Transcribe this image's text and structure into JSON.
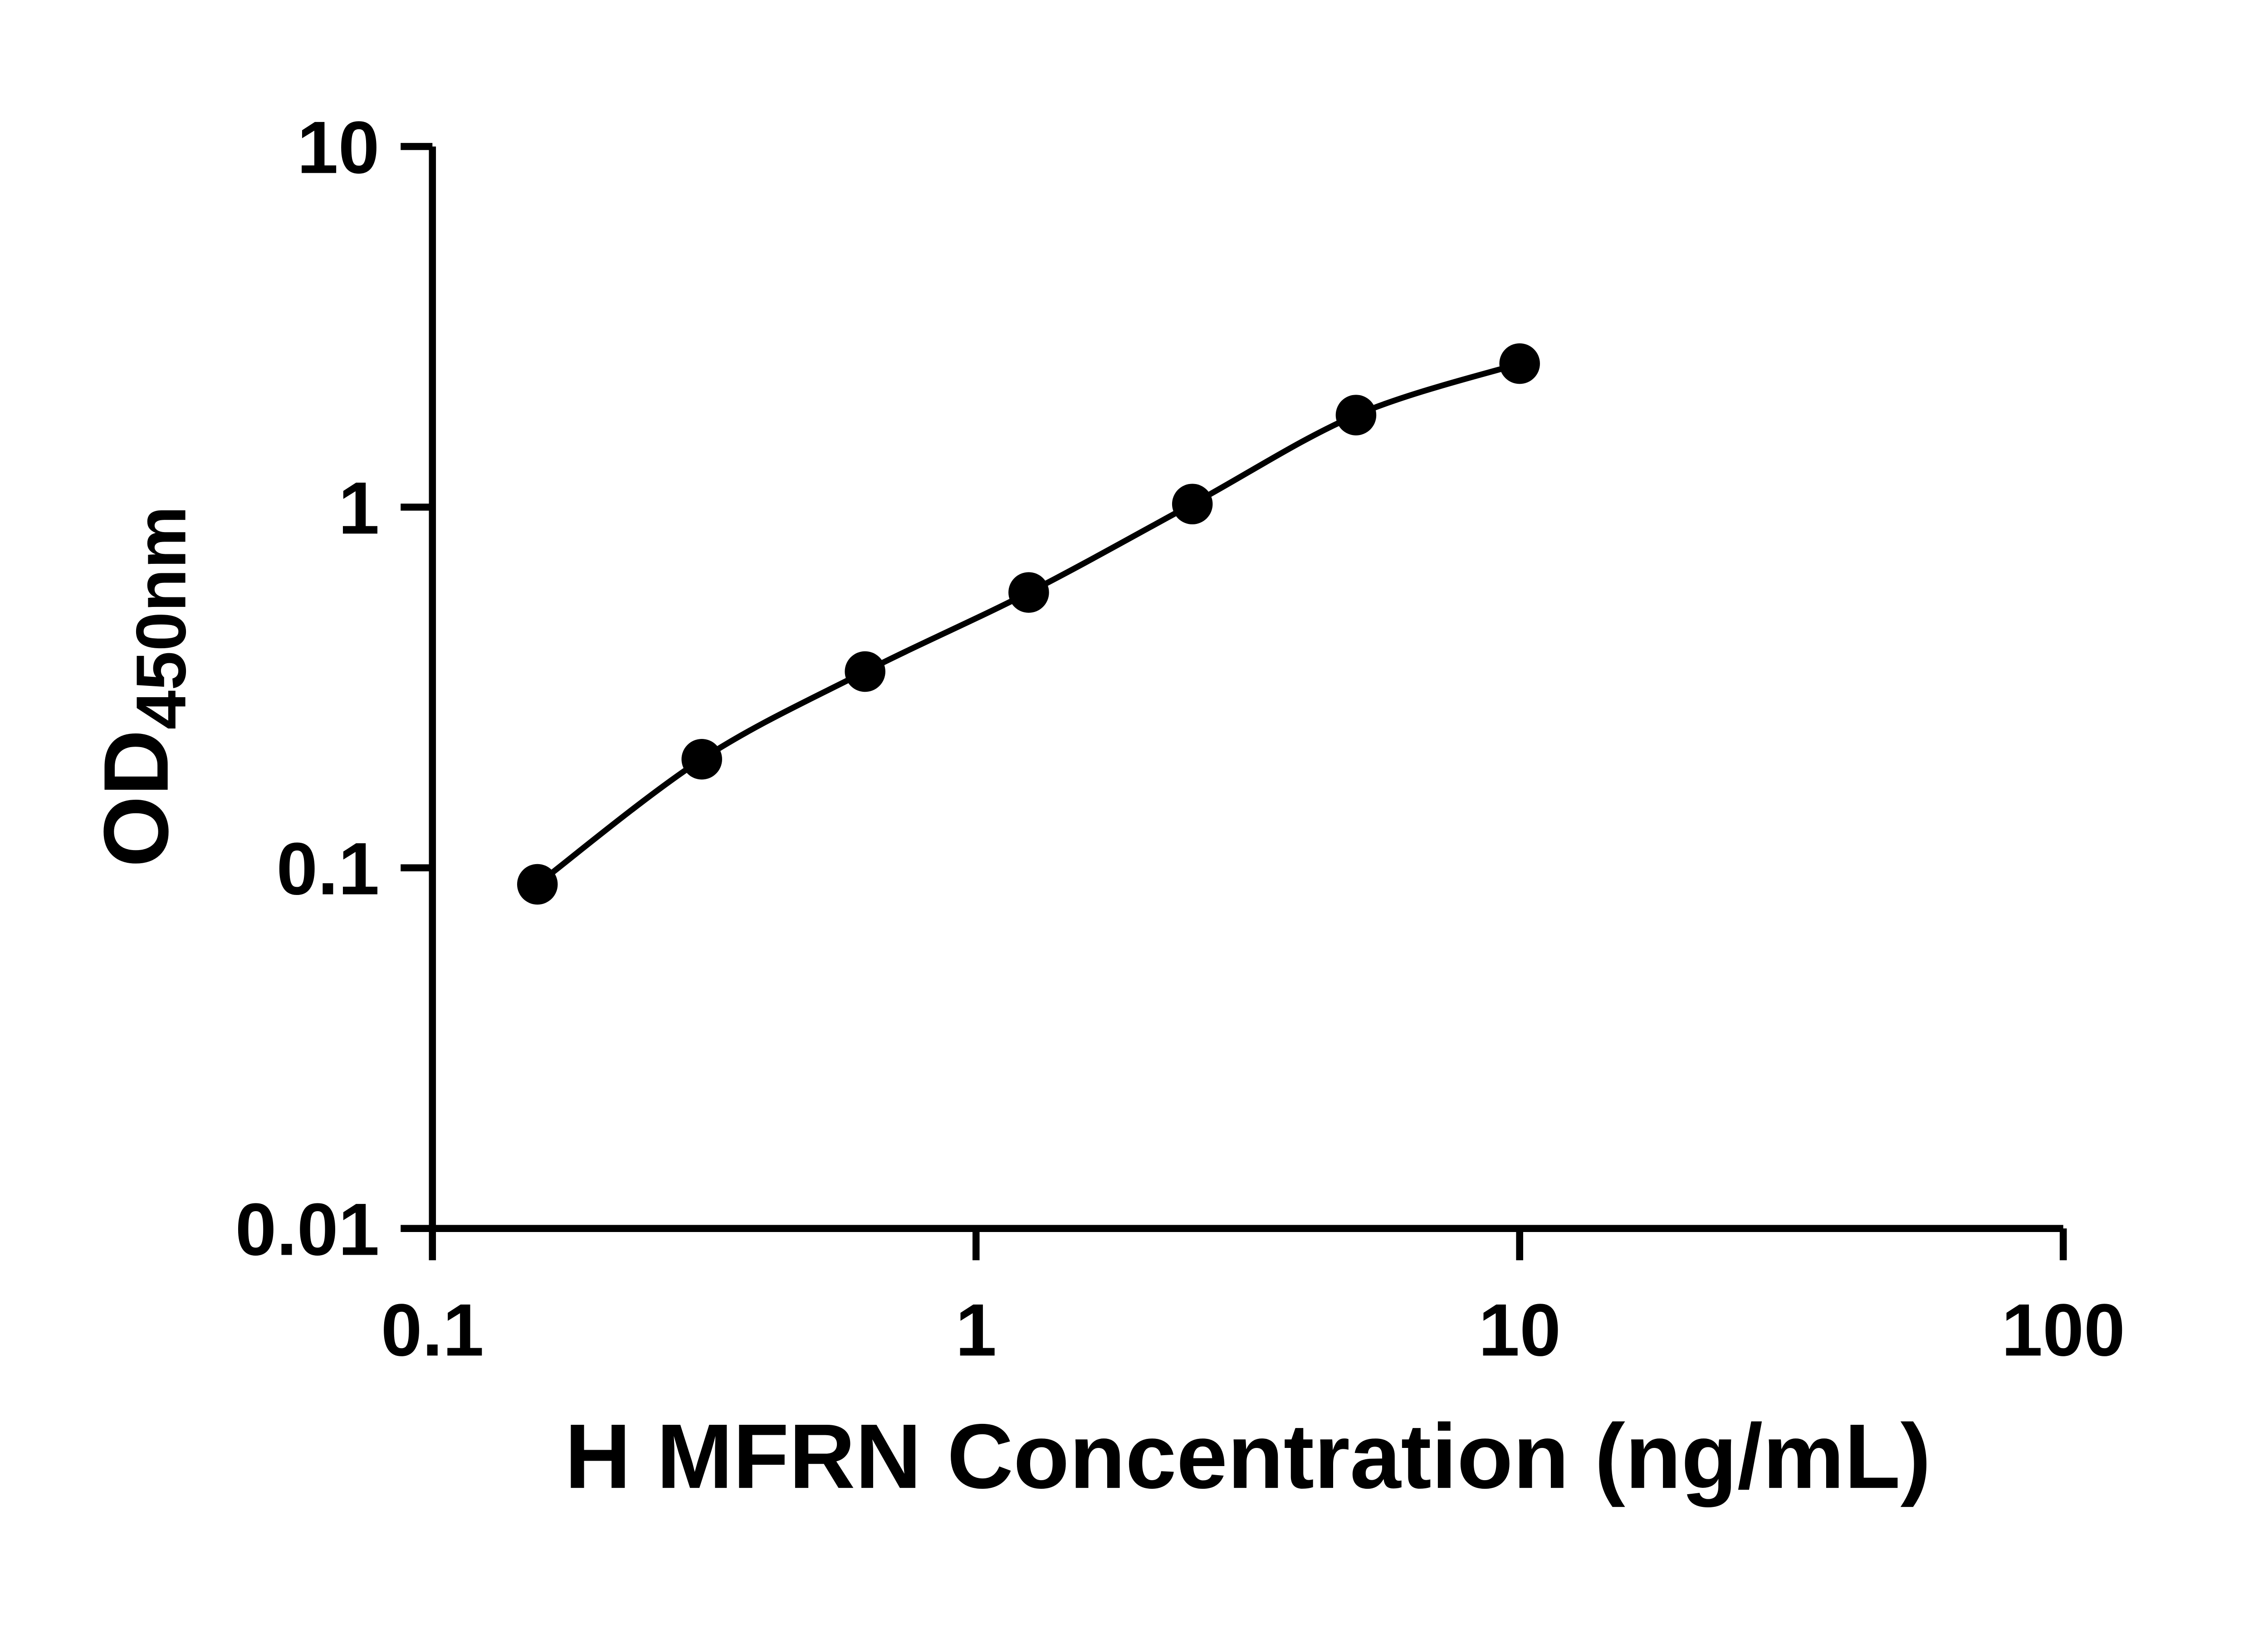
{
  "chart_data": {
    "type": "scatter",
    "title": "",
    "xlabel": "H MFRN Concentration (ng/mL)",
    "ylabel": "OD450nm",
    "ylabel_main": "OD",
    "ylabel_sub": "450nm",
    "xscale": "log",
    "yscale": "log",
    "xlim": [
      0.1,
      100
    ],
    "ylim": [
      0.01,
      10
    ],
    "x_ticks": [
      0.1,
      1,
      10,
      100
    ],
    "x_tick_labels": [
      "0.1",
      "1",
      "10",
      "100"
    ],
    "y_ticks": [
      0.01,
      0.1,
      1,
      10
    ],
    "y_tick_labels": [
      "0.01",
      "0.1",
      "1",
      "10"
    ],
    "x": [
      0.156,
      0.313,
      0.625,
      1.25,
      2.5,
      5,
      10
    ],
    "y": [
      0.09,
      0.2,
      0.35,
      0.58,
      1.02,
      1.8,
      2.5
    ],
    "grid": false,
    "legend": "none",
    "marker": "circle",
    "marker_color": "#000000",
    "line_color": "#000000",
    "axis_color": "#000000",
    "background": "#ffffff"
  }
}
